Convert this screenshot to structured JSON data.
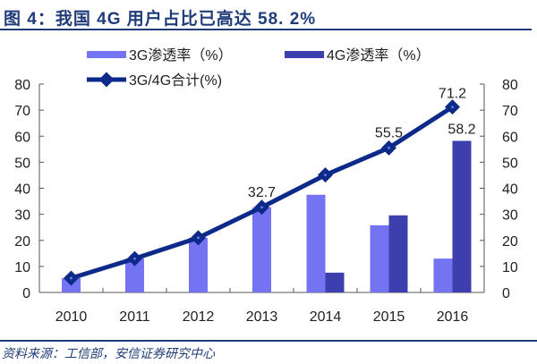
{
  "header": {
    "title": "图 4：我国 4G 用户占比已高达 58. 2%"
  },
  "footer": {
    "source": "资料来源：工信部，安信证券研究中心"
  },
  "colors": {
    "series_3g": "#7474f2",
    "series_4g": "#3e3fae",
    "series_total": "#0d2a8a",
    "title": "#1f3c78"
  },
  "chart_data": {
    "type": "bar",
    "title": "我国 4G 用户占比已高达 58. 2%",
    "xlabel": "",
    "ylabel": "",
    "categories": [
      "2010",
      "2011",
      "2012",
      "2013",
      "2014",
      "2015",
      "2016"
    ],
    "ylim": [
      0,
      80
    ],
    "y_ticks": [
      0,
      10,
      20,
      30,
      40,
      50,
      60,
      70,
      80
    ],
    "y2lim": [
      0,
      80
    ],
    "y2_ticks": [
      0,
      10,
      20,
      30,
      40,
      50,
      60,
      70,
      80
    ],
    "grid": false,
    "legend_position": "top",
    "series": [
      {
        "name": "3G渗透率（%）",
        "type": "bar",
        "values": [
          5.5,
          13.0,
          21.0,
          32.7,
          37.5,
          25.8,
          13.0
        ]
      },
      {
        "name": "4G渗透率（%）",
        "type": "bar",
        "values": [
          0,
          0,
          0,
          0,
          7.6,
          29.6,
          58.2
        ]
      },
      {
        "name": "3G/4G合计(%)",
        "type": "line",
        "values": [
          5.5,
          13.0,
          21.0,
          32.7,
          45.1,
          55.5,
          71.2
        ]
      }
    ],
    "annotations": [
      {
        "category": "2013",
        "series": "3G/4G合计(%)",
        "text": "32.7"
      },
      {
        "category": "2015",
        "series": "3G/4G合计(%)",
        "text": "55.5"
      },
      {
        "category": "2016",
        "series": "3G/4G合计(%)",
        "text": "71.2"
      },
      {
        "category": "2016",
        "series": "4G渗透率（%）",
        "text": "58.2"
      }
    ]
  }
}
